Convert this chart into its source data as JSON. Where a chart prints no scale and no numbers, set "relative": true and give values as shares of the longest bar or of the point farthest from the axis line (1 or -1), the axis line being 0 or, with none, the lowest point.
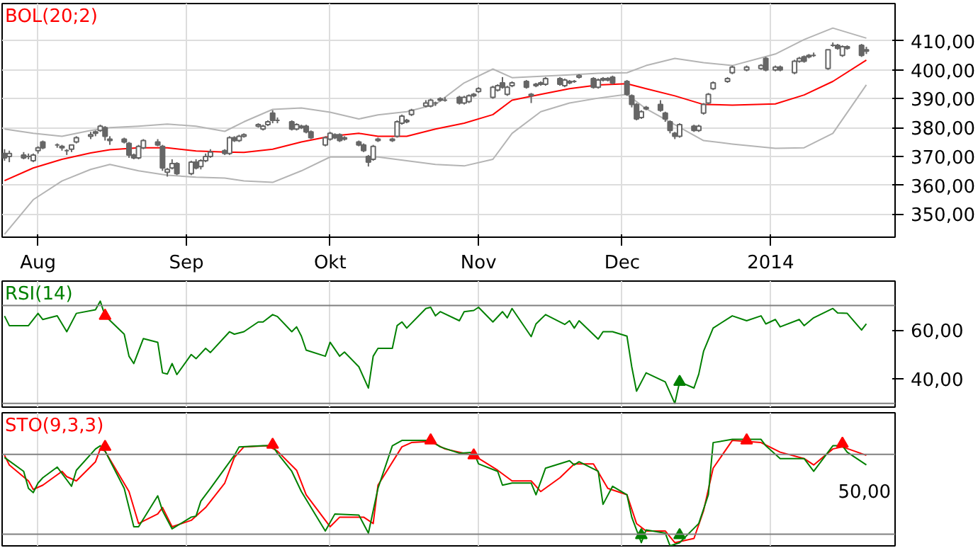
{
  "chart_data": [
    {
      "type": "candlestick",
      "title": "BOL(20;2)",
      "color": "#666666",
      "x": [
        "2013-07-25",
        "2013-07-26",
        "2013-07-29",
        "2013-07-30",
        "2013-07-31",
        "2013-08-01",
        "2013-08-02",
        "2013-08-05",
        "2013-08-06",
        "2013-08-07",
        "2013-08-08",
        "2013-08-09",
        "2013-08-12",
        "2013-08-13",
        "2013-08-14",
        "2013-08-15",
        "2013-08-16",
        "2013-08-19",
        "2013-08-20",
        "2013-08-21",
        "2013-08-22",
        "2013-08-23",
        "2013-08-26",
        "2013-08-27",
        "2013-08-28",
        "2013-08-29",
        "2013-08-30",
        "2013-09-02",
        "2013-09-03",
        "2013-09-04",
        "2013-09-05",
        "2013-09-06",
        "2013-09-09",
        "2013-09-10",
        "2013-09-11",
        "2013-09-12",
        "2013-09-13",
        "2013-09-16",
        "2013-09-17",
        "2013-09-18",
        "2013-09-19",
        "2013-09-20",
        "2013-09-23",
        "2013-09-24",
        "2013-09-25",
        "2013-09-26",
        "2013-09-27",
        "2013-09-30",
        "2013-10-01",
        "2013-10-02",
        "2013-10-03",
        "2013-10-04",
        "2013-10-07",
        "2013-10-08",
        "2013-10-09",
        "2013-10-10",
        "2013-10-11",
        "2013-10-14",
        "2013-10-15",
        "2013-10-16",
        "2013-10-17",
        "2013-10-18",
        "2013-10-21",
        "2013-10-22",
        "2013-10-23",
        "2013-10-24",
        "2013-10-25",
        "2013-10-28",
        "2013-10-29",
        "2013-10-30",
        "2013-10-31",
        "2013-11-01",
        "2013-11-04",
        "2013-11-05",
        "2013-11-06",
        "2013-11-07",
        "2013-11-08",
        "2013-11-11",
        "2013-11-12",
        "2013-11-13",
        "2013-11-14",
        "2013-11-15",
        "2013-11-18",
        "2013-11-19",
        "2013-11-20",
        "2013-11-21",
        "2013-11-22",
        "2013-11-25",
        "2013-11-26",
        "2013-11-27",
        "2013-11-28",
        "2013-11-29",
        "2013-12-02",
        "2013-12-03",
        "2013-12-04",
        "2013-12-05",
        "2013-12-06",
        "2013-12-09",
        "2013-12-10",
        "2013-12-11",
        "2013-12-12",
        "2013-12-13",
        "2013-12-16",
        "2013-12-17",
        "2013-12-18",
        "2013-12-19",
        "2013-12-20",
        "2013-12-23",
        "2013-12-24",
        "2013-12-27",
        "2013-12-30",
        "2013-12-31",
        "2014-01-02",
        "2014-01-03",
        "2014-01-06",
        "2014-01-07",
        "2014-01-08",
        "2014-01-09",
        "2014-01-10",
        "2014-01-13",
        "2014-01-14",
        "2014-01-15",
        "2014-01-16",
        "2014-01-17",
        "2014-01-20",
        "2014-01-21"
      ],
      "ohlc": [
        [
          371,
          372.5,
          368.5,
          369.5
        ],
        [
          370,
          372,
          368,
          371
        ],
        [
          370.5,
          371.5,
          369,
          369.5
        ],
        [
          370,
          371,
          369,
          370
        ],
        [
          368.5,
          371,
          368,
          370.5
        ],
        [
          372,
          373.5,
          371,
          373
        ],
        [
          375,
          375.5,
          372.5,
          373
        ],
        [
          374,
          374.5,
          373,
          374
        ],
        [
          373.5,
          374,
          372,
          373
        ],
        [
          372,
          372.5,
          370.5,
          372
        ],
        [
          372.5,
          374,
          371.5,
          374
        ],
        [
          375,
          377,
          374.5,
          376.5
        ],
        [
          377,
          378.5,
          376,
          377.5
        ],
        [
          378,
          379,
          377,
          378.5
        ],
        [
          379,
          381,
          378.5,
          380.5
        ],
        [
          380,
          380.5,
          375.5,
          377
        ],
        [
          376,
          377,
          374,
          375.5
        ],
        [
          376,
          376.5,
          374.5,
          375
        ],
        [
          374.5,
          375,
          369.5,
          370.5
        ],
        [
          370.5,
          371,
          369,
          369.5
        ],
        [
          369.5,
          374,
          369,
          373.5
        ],
        [
          373,
          376,
          372.5,
          375.5
        ],
        [
          375,
          376,
          373.5,
          374
        ],
        [
          373.5,
          374,
          365,
          366
        ],
        [
          364.5,
          366,
          363,
          365.5
        ],
        [
          366,
          369,
          365.5,
          367.5
        ],
        [
          367.5,
          368,
          363.5,
          364
        ],
        [
          364,
          368.5,
          363.5,
          368
        ],
        [
          368,
          369,
          365.5,
          366
        ],
        [
          366.5,
          369,
          365.5,
          368.5
        ],
        [
          368.5,
          371,
          368,
          370
        ],
        [
          370,
          372.5,
          369.5,
          371.5
        ],
        [
          372,
          372.5,
          370.5,
          371
        ],
        [
          371,
          377,
          370.5,
          376.5
        ],
        [
          376.5,
          377,
          375,
          375.5
        ],
        [
          375.5,
          377.5,
          375,
          377
        ],
        [
          377,
          378,
          376.5,
          377.5
        ],
        [
          380.5,
          381.5,
          380,
          381
        ],
        [
          379.5,
          381,
          379,
          380.5
        ],
        [
          381,
          382.5,
          380.5,
          382
        ],
        [
          385,
          386,
          381.5,
          382.5
        ],
        [
          382.5,
          383.5,
          381.5,
          382.5
        ],
        [
          382,
          382.5,
          379,
          379.5
        ],
        [
          379.5,
          381.5,
          379,
          381
        ],
        [
          380.5,
          381,
          379.5,
          380
        ],
        [
          380.5,
          381,
          378,
          378.5
        ],
        [
          378.5,
          379,
          376,
          376.5
        ],
        [
          374,
          377,
          373.5,
          376.5
        ],
        [
          376,
          378.5,
          375.5,
          378
        ],
        [
          377.5,
          378,
          376,
          376.5
        ],
        [
          377.5,
          378,
          375,
          375.5
        ],
        [
          376,
          377,
          375.5,
          376.5
        ],
        [
          375,
          375.5,
          373.5,
          374
        ],
        [
          374,
          374.5,
          371.5,
          372
        ],
        [
          370,
          370.5,
          366.5,
          368
        ],
        [
          369,
          374,
          368.5,
          373.5
        ],
        [
          375.5,
          376.5,
          375,
          376
        ],
        [
          375.5,
          376.5,
          375,
          376
        ],
        [
          377,
          382.5,
          376.5,
          382
        ],
        [
          381.5,
          384.5,
          381,
          384
        ],
        [
          382,
          383,
          381.5,
          382.5
        ],
        [
          384.5,
          386.5,
          384,
          386
        ],
        [
          387.5,
          389.5,
          387,
          388.5
        ],
        [
          387.5,
          390,
          387,
          389.5
        ],
        [
          388.5,
          389,
          387.5,
          388.5
        ],
        [
          389.5,
          390.5,
          389,
          390
        ],
        [
          389.5,
          390.5,
          389,
          389.5
        ],
        [
          390.5,
          391,
          388,
          388.5
        ],
        [
          388.5,
          391,
          388,
          390.5
        ],
        [
          389,
          391.5,
          388.5,
          391
        ],
        [
          391,
          392,
          390.5,
          391.5
        ],
        [
          392.5,
          394,
          392,
          393.5
        ],
        [
          390.5,
          394.5,
          390,
          394
        ],
        [
          393,
          395,
          392.5,
          394.5
        ],
        [
          395.5,
          397.5,
          393.5,
          394
        ],
        [
          391.5,
          394.5,
          391,
          394
        ],
        [
          394.5,
          396,
          394,
          395.5
        ],
        [
          396,
          396.5,
          393.5,
          394
        ],
        [
          391,
          392,
          388.5,
          391.5
        ],
        [
          394.5,
          395.5,
          394,
          395
        ],
        [
          395,
          396,
          394.5,
          395.5
        ],
        [
          395,
          397.5,
          394.5,
          397
        ],
        [
          397,
          397.5,
          394.5,
          395
        ],
        [
          394.5,
          397,
          394,
          396.5
        ],
        [
          395.5,
          396.5,
          395,
          396
        ],
        [
          396,
          396.5,
          395.5,
          396
        ],
        [
          397.5,
          398.5,
          397,
          398
        ],
        [
          397,
          397.5,
          393.5,
          394
        ],
        [
          394,
          397,
          393.5,
          396.5
        ],
        [
          396.5,
          397.5,
          396,
          397
        ],
        [
          396.5,
          397.5,
          396,
          397
        ],
        [
          397.5,
          398,
          395,
          395.5
        ],
        [
          396,
          396.5,
          391,
          391.5
        ],
        [
          391,
          391.5,
          387,
          388
        ],
        [
          388,
          388.5,
          382.5,
          383
        ],
        [
          383.5,
          386,
          383,
          385.5
        ],
        [
          386.5,
          387.5,
          386,
          387
        ],
        [
          388,
          389.5,
          385.5,
          386
        ],
        [
          385,
          385.5,
          382,
          383
        ],
        [
          382,
          382.5,
          378,
          379
        ],
        [
          378,
          378.5,
          376,
          377
        ],
        [
          377,
          381.5,
          376.5,
          381
        ],
        [
          380.5,
          381,
          378.5,
          379
        ],
        [
          379,
          381,
          378.5,
          380.5
        ],
        [
          385,
          388.5,
          384.5,
          388
        ],
        [
          388.5,
          392,
          388,
          391.5
        ],
        [
          393.5,
          396,
          393,
          395.5
        ],
        [
          396,
          397.5,
          395.5,
          397
        ],
        [
          399,
          401.5,
          398.5,
          401
        ],
        [
          400,
          401.5,
          399.5,
          401
        ],
        [
          400.5,
          402,
          400,
          401.5
        ],
        [
          404,
          404.5,
          399.5,
          400
        ],
        [
          400,
          401.5,
          399.5,
          401
        ],
        [
          401,
          401.5,
          399.5,
          400
        ],
        [
          399,
          403.5,
          398.5,
          403
        ],
        [
          403,
          404.5,
          402.5,
          404
        ],
        [
          404.5,
          405,
          402.5,
          403
        ],
        [
          404.5,
          405.5,
          404,
          405
        ],
        [
          405,
          406,
          404.5,
          405
        ],
        [
          400.5,
          407,
          400,
          407
        ],
        [
          408.5,
          409.5,
          408,
          408.5
        ],
        [
          408.5,
          409,
          407,
          407.5
        ],
        [
          405,
          408.5,
          404.5,
          408
        ],
        [
          408,
          408.5,
          407,
          407.5
        ],
        [
          408.5,
          409,
          404.5,
          405
        ],
        [
          406.5,
          408,
          405.5,
          407
        ]
      ],
      "series": [
        {
          "type": "line",
          "color": "#ff0000",
          "x": [
            "2013-07-25",
            "2013-07-31",
            "2013-08-06",
            "2013-08-12",
            "2013-08-16",
            "2013-08-22",
            "2013-08-28",
            "2013-09-03",
            "2013-09-09",
            "2013-09-13",
            "2013-09-19",
            "2013-09-25",
            "2013-10-01",
            "2013-10-07",
            "2013-10-11",
            "2013-10-17",
            "2013-10-23",
            "2013-10-29",
            "2013-11-04",
            "2013-11-08",
            "2013-11-14",
            "2013-11-20",
            "2013-11-26",
            "2013-12-02",
            "2013-12-06",
            "2013-12-12",
            "2013-12-18",
            "2013-12-24",
            "2014-01-02",
            "2014-01-08",
            "2014-01-14",
            "2014-01-21"
          ],
          "values": [
            361.6,
            366,
            369,
            371.2,
            372.3,
            373,
            373,
            371.9,
            371.5,
            371.4,
            372.5,
            375,
            377,
            378,
            377,
            377,
            379.5,
            381.5,
            384.5,
            389.5,
            391.5,
            393.5,
            394.8,
            395.2,
            393.5,
            391,
            388,
            387.8,
            388.2,
            391.3,
            396,
            403.4
          ]
        },
        {
          "type": "line",
          "color": "#b4b4b4",
          "x": [
            "2013-07-25",
            "2013-07-31",
            "2013-08-06",
            "2013-08-12",
            "2013-08-16",
            "2013-08-22",
            "2013-08-28",
            "2013-09-03",
            "2013-09-09",
            "2013-09-13",
            "2013-09-19",
            "2013-09-25",
            "2013-10-01",
            "2013-10-07",
            "2013-10-11",
            "2013-10-17",
            "2013-10-23",
            "2013-10-29",
            "2013-11-04",
            "2013-11-08",
            "2013-11-14",
            "2013-11-20",
            "2013-11-26",
            "2013-12-02",
            "2013-12-06",
            "2013-12-12",
            "2013-12-18",
            "2013-12-24",
            "2014-01-02",
            "2014-01-08",
            "2014-01-14",
            "2014-01-21"
          ],
          "values": [
            379.5,
            378,
            377,
            379,
            380,
            380.5,
            381.2,
            380.5,
            378.7,
            382,
            386.3,
            386.8,
            385.3,
            383,
            384.4,
            385.5,
            388,
            395.5,
            400.3,
            397.3,
            397.8,
            398.3,
            398.8,
            399,
            401.5,
            404,
            402.5,
            401.5,
            405.5,
            410.5,
            414.5,
            411
          ]
        },
        {
          "type": "line",
          "color": "#b4b4b4",
          "x": [
            "2013-07-25",
            "2013-07-31",
            "2013-08-06",
            "2013-08-12",
            "2013-08-16",
            "2013-08-22",
            "2013-08-28",
            "2013-09-03",
            "2013-09-09",
            "2013-09-13",
            "2013-09-19",
            "2013-09-25",
            "2013-10-01",
            "2013-10-07",
            "2013-10-11",
            "2013-10-17",
            "2013-10-23",
            "2013-10-29",
            "2013-11-04",
            "2013-11-08",
            "2013-11-14",
            "2013-11-20",
            "2013-11-26",
            "2013-12-02",
            "2013-12-06",
            "2013-12-12",
            "2013-12-18",
            "2013-12-24",
            "2014-01-02",
            "2014-01-08",
            "2014-01-14",
            "2014-01-21"
          ],
          "values": [
            343,
            355,
            361.5,
            365.5,
            367.2,
            365,
            363.5,
            362.8,
            362.5,
            361.5,
            361,
            365,
            369.8,
            369.8,
            369.8,
            368.5,
            367.2,
            366.7,
            369,
            378,
            385.5,
            388.5,
            390.2,
            391.5,
            386.5,
            381,
            375.5,
            374.3,
            372.8,
            373,
            378,
            394.8
          ]
        }
      ],
      "xlim": [
        "2013-07-24T12:00",
        "2014-01-27"
      ],
      "xticks": [
        {
          "value": "2013-08",
          "label": "Aug"
        },
        {
          "value": "2013-09",
          "label": "Sep"
        },
        {
          "value": "2013-10",
          "label": "Okt"
        },
        {
          "value": "2013-11",
          "label": "Nov"
        },
        {
          "value": "2013-12",
          "label": "Dec"
        },
        {
          "value": "2014",
          "label": "2014"
        }
      ],
      "ylim": [
        342,
        423
      ],
      "yticks": [
        {
          "value": 350,
          "label": "350,00"
        },
        {
          "value": 360,
          "label": "360,00"
        },
        {
          "value": 370,
          "label": "370,00"
        },
        {
          "value": 380,
          "label": "380,00"
        },
        {
          "value": 390,
          "label": "390,00"
        },
        {
          "value": 400,
          "label": "400,00"
        },
        {
          "value": 410,
          "label": "410,00"
        }
      ],
      "grid": true
    },
    {
      "type": "line",
      "title": "RSI(14)",
      "series": [
        {
          "type": "line",
          "color": "#008000",
          "x": [
            "2013-07-25",
            "2013-07-26",
            "2013-07-30",
            "2013-08-01",
            "2013-08-02",
            "2013-08-05",
            "2013-08-07",
            "2013-08-09",
            "2013-08-13",
            "2013-08-14",
            "2013-08-15",
            "2013-08-19",
            "2013-08-20",
            "2013-08-21",
            "2013-08-23",
            "2013-08-26",
            "2013-08-27",
            "2013-08-28",
            "2013-08-29",
            "2013-08-30",
            "2013-09-02",
            "2013-09-03",
            "2013-09-05",
            "2013-09-06",
            "2013-09-10",
            "2013-09-11",
            "2013-09-13",
            "2013-09-16",
            "2013-09-17",
            "2013-09-19",
            "2013-09-20",
            "2013-09-23",
            "2013-09-24",
            "2013-09-25",
            "2013-09-26",
            "2013-09-30",
            "2013-10-01",
            "2013-10-03",
            "2013-10-04",
            "2013-10-07",
            "2013-10-09",
            "2013-10-10",
            "2013-10-11",
            "2013-10-14",
            "2013-10-15",
            "2013-10-16",
            "2013-10-17",
            "2013-10-21",
            "2013-10-22",
            "2013-10-23",
            "2013-10-24",
            "2013-10-28",
            "2013-10-29",
            "2013-10-31",
            "2013-11-01",
            "2013-11-04",
            "2013-11-06",
            "2013-11-07",
            "2013-11-08",
            "2013-11-12",
            "2013-11-13",
            "2013-11-15",
            "2013-11-19",
            "2013-11-20",
            "2013-11-21",
            "2013-11-22",
            "2013-11-26",
            "2013-11-27",
            "2013-11-29",
            "2013-12-02",
            "2013-12-03",
            "2013-12-04",
            "2013-12-06",
            "2013-12-10",
            "2013-12-12",
            "2013-12-13",
            "2013-12-16",
            "2013-12-17",
            "2013-12-18",
            "2013-12-20",
            "2013-12-24",
            "2013-12-27",
            "2013-12-30",
            "2013-12-31",
            "2014-01-02",
            "2014-01-03",
            "2014-01-07",
            "2014-01-08",
            "2014-01-10",
            "2014-01-14",
            "2014-01-15",
            "2014-01-17",
            "2014-01-20",
            "2014-01-21"
          ],
          "values": [
            65.7,
            61.8,
            61.8,
            66.8,
            64.3,
            65.8,
            59.3,
            66.8,
            68.3,
            71.8,
            65.8,
            58.3,
            49.3,
            46.3,
            56.5,
            55,
            42.5,
            42,
            46.3,
            41.8,
            50,
            48.3,
            52.5,
            50.8,
            59.3,
            58.3,
            59.3,
            63.3,
            63.3,
            66.3,
            65.5,
            59.3,
            61.3,
            57.5,
            51.8,
            49.3,
            55,
            49.3,
            51,
            45,
            36.3,
            49.3,
            52.5,
            52.5,
            61.8,
            63.3,
            60.8,
            68.8,
            69.3,
            65.8,
            67.5,
            63.8,
            67.5,
            68,
            69.3,
            63.3,
            67.5,
            65,
            68.8,
            57.3,
            62.5,
            66.3,
            62.3,
            63.8,
            60.8,
            63.8,
            56.3,
            59.3,
            59.3,
            57.5,
            45,
            35,
            42.5,
            38.8,
            30,
            38.8,
            36.3,
            42,
            51.3,
            60.8,
            65.8,
            63.8,
            65.8,
            62.5,
            64.3,
            61.3,
            64.3,
            61.8,
            65,
            68.8,
            67,
            66.8,
            60,
            62.5
          ]
        },
        {
          "type": "scatter",
          "marker": "triangle",
          "color": "#ff0000",
          "x": [
            "2013-08-15"
          ],
          "values": [
            65.8
          ]
        },
        {
          "type": "scatter",
          "marker": "triangle",
          "color": "#008000",
          "x": [
            "2013-12-13"
          ],
          "values": [
            38.8
          ]
        }
      ],
      "ref_lines": [
        {
          "axis": "y",
          "value": 70,
          "color": "#808080"
        },
        {
          "axis": "y",
          "value": 30,
          "color": "#808080"
        }
      ],
      "xlim": [
        "2013-07-24T12:00",
        "2014-01-27"
      ],
      "xticks": [
        {
          "value": "2013-08",
          "label": null
        },
        {
          "value": "2013-09",
          "label": null
        },
        {
          "value": "2013-10",
          "label": null
        },
        {
          "value": "2013-11",
          "label": null
        },
        {
          "value": "2013-12",
          "label": null
        },
        {
          "value": "2014",
          "label": null
        }
      ],
      "ylim": [
        28.5,
        80
      ],
      "yticks": [
        {
          "value": 40,
          "label": "40,00"
        },
        {
          "value": 60,
          "label": "60,00"
        }
      ],
      "tick_labels": "y",
      "grid": "x"
    },
    {
      "type": "line",
      "title": "STO(9,3,3)",
      "relative": true,
      "annotations": [
        "50,00"
      ],
      "series": [
        {
          "type": "line",
          "color": "#ff0000",
          "x": [
            "2013-07-25",
            "2013-07-26",
            "2013-07-30",
            "2013-07-31",
            "2013-08-02",
            "2013-08-06",
            "2013-08-07",
            "2013-08-09",
            "2013-08-13",
            "2013-08-14",
            "2013-08-15",
            "2013-08-20",
            "2013-08-22",
            "2013-08-26",
            "2013-08-27",
            "2013-08-29",
            "2013-09-02",
            "2013-09-05",
            "2013-09-09",
            "2013-09-11",
            "2013-09-13",
            "2013-09-18",
            "2013-09-20",
            "2013-09-24",
            "2013-09-26",
            "2013-10-01",
            "2013-10-03",
            "2013-10-08",
            "2013-10-10",
            "2013-10-11",
            "2013-10-16",
            "2013-10-18",
            "2013-10-22",
            "2013-10-25",
            "2013-10-29",
            "2013-10-31",
            "2013-11-05",
            "2013-11-08",
            "2013-11-12",
            "2013-11-14",
            "2013-11-18",
            "2013-11-21",
            "2013-11-25",
            "2013-11-28",
            "2013-12-02",
            "2013-12-04",
            "2013-12-06",
            "2013-12-10",
            "2013-12-12",
            "2013-12-16",
            "2013-12-18",
            "2013-12-20",
            "2013-12-24",
            "2013-12-30",
            "2014-01-03",
            "2014-01-08",
            "2014-01-10",
            "2014-01-14",
            "2014-01-16",
            "2014-01-21"
          ],
          "values": [
            0.85,
            0.76,
            0.61,
            0.53,
            0.57,
            0.7,
            0.65,
            0.61,
            0.79,
            0.91,
            0.89,
            0.51,
            0.21,
            0.3,
            0.36,
            0.18,
            0.24,
            0.36,
            0.59,
            0.83,
            0.93,
            0.94,
            0.89,
            0.71,
            0.48,
            0.18,
            0.27,
            0.27,
            0.21,
            0.57,
            0.93,
            0.97,
            0.98,
            0.91,
            0.87,
            0.85,
            0.71,
            0.61,
            0.61,
            0.51,
            0.64,
            0.77,
            0.77,
            0.54,
            0.48,
            0.21,
            0.14,
            0.14,
            0.03,
            0.07,
            0.33,
            0.73,
            0.99,
            0.97,
            0.88,
            0.82,
            0.76,
            0.91,
            0.93,
            0.85
          ]
        },
        {
          "type": "line",
          "color": "#008000",
          "x": [
            "2013-07-25",
            "2013-07-29",
            "2013-07-30",
            "2013-07-31",
            "2013-08-01",
            "2013-08-02",
            "2013-08-05",
            "2013-08-07",
            "2013-08-08",
            "2013-08-09",
            "2013-08-13",
            "2013-08-14",
            "2013-08-15",
            "2013-08-19",
            "2013-08-21",
            "2013-08-22",
            "2013-08-26",
            "2013-08-27",
            "2013-08-29",
            "2013-09-02",
            "2013-09-03",
            "2013-09-04",
            "2013-09-06",
            "2013-09-11",
            "2013-09-12",
            "2013-09-17",
            "2013-09-19",
            "2013-09-20",
            "2013-09-23",
            "2013-09-25",
            "2013-09-30",
            "2013-10-02",
            "2013-10-07",
            "2013-10-09",
            "2013-10-11",
            "2013-10-14",
            "2013-10-16",
            "2013-10-22",
            "2013-10-24",
            "2013-10-28",
            "2013-10-31",
            "2013-11-01",
            "2013-11-05",
            "2013-11-06",
            "2013-11-08",
            "2013-11-12",
            "2013-11-13",
            "2013-11-15",
            "2013-11-20",
            "2013-11-21",
            "2013-11-22",
            "2013-11-26",
            "2013-11-27",
            "2013-11-29",
            "2013-12-02",
            "2013-12-03",
            "2013-12-05",
            "2013-12-06",
            "2013-12-10",
            "2013-12-11",
            "2013-12-13",
            "2013-12-17",
            "2013-12-19",
            "2013-12-20",
            "2013-12-24",
            "2013-12-30",
            "2013-12-31",
            "2014-01-03",
            "2014-01-08",
            "2014-01-10",
            "2014-01-14",
            "2014-01-16",
            "2014-01-17",
            "2014-01-21"
          ],
          "values": [
            0.83,
            0.7,
            0.54,
            0.5,
            0.59,
            0.64,
            0.74,
            0.62,
            0.56,
            0.71,
            0.91,
            0.94,
            0.89,
            0.54,
            0.18,
            0.18,
            0.47,
            0.33,
            0.16,
            0.27,
            0.28,
            0.42,
            0.54,
            0.85,
            0.93,
            0.94,
            0.94,
            0.87,
            0.7,
            0.51,
            0.14,
            0.3,
            0.29,
            0.12,
            0.54,
            0.94,
            0.99,
            0.99,
            0.93,
            0.87,
            0.88,
            0.77,
            0.7,
            0.57,
            0.59,
            0.59,
            0.48,
            0.73,
            0.8,
            0.76,
            0.79,
            0.7,
            0.39,
            0.56,
            0.48,
            0.27,
            0.03,
            0.15,
            0.12,
            0,
            0.03,
            0.21,
            0.48,
            0.97,
            1,
            1,
            0.94,
            0.82,
            0.82,
            0.7,
            0.94,
            0.94,
            0.88,
            0.76
          ]
        },
        {
          "type": "scatter",
          "marker": "triangle",
          "color": "#ff0000",
          "x": [
            "2013-08-15",
            "2013-09-19",
            "2013-10-22",
            "2013-10-31",
            "2013-12-27",
            "2014-01-16"
          ],
          "values": [
            0.93,
            0.95,
            0.99,
            0.85,
            0.99,
            0.96
          ]
        },
        {
          "type": "scatter",
          "marker": "triangle",
          "color": "#008000",
          "x": [
            "2013-12-05",
            "2013-12-13"
          ],
          "values": [
            0.1,
            0.1
          ]
        }
      ],
      "ref_lines": [
        {
          "axis": "y",
          "value": 0.86,
          "color": "#808080"
        },
        {
          "axis": "y",
          "value": 0.11,
          "color": "#808080"
        }
      ],
      "xlim": [
        "2013-07-24T12:00",
        "2014-01-27"
      ],
      "xticks": [
        {
          "value": "2013-08",
          "label": null
        },
        {
          "value": "2013-09",
          "label": null
        },
        {
          "value": "2013-10",
          "label": null
        },
        {
          "value": "2013-11",
          "label": null
        },
        {
          "value": "2013-12",
          "label": null
        },
        {
          "value": "2014",
          "label": null
        }
      ],
      "tick_labels": "y",
      "grid": "x"
    }
  ]
}
